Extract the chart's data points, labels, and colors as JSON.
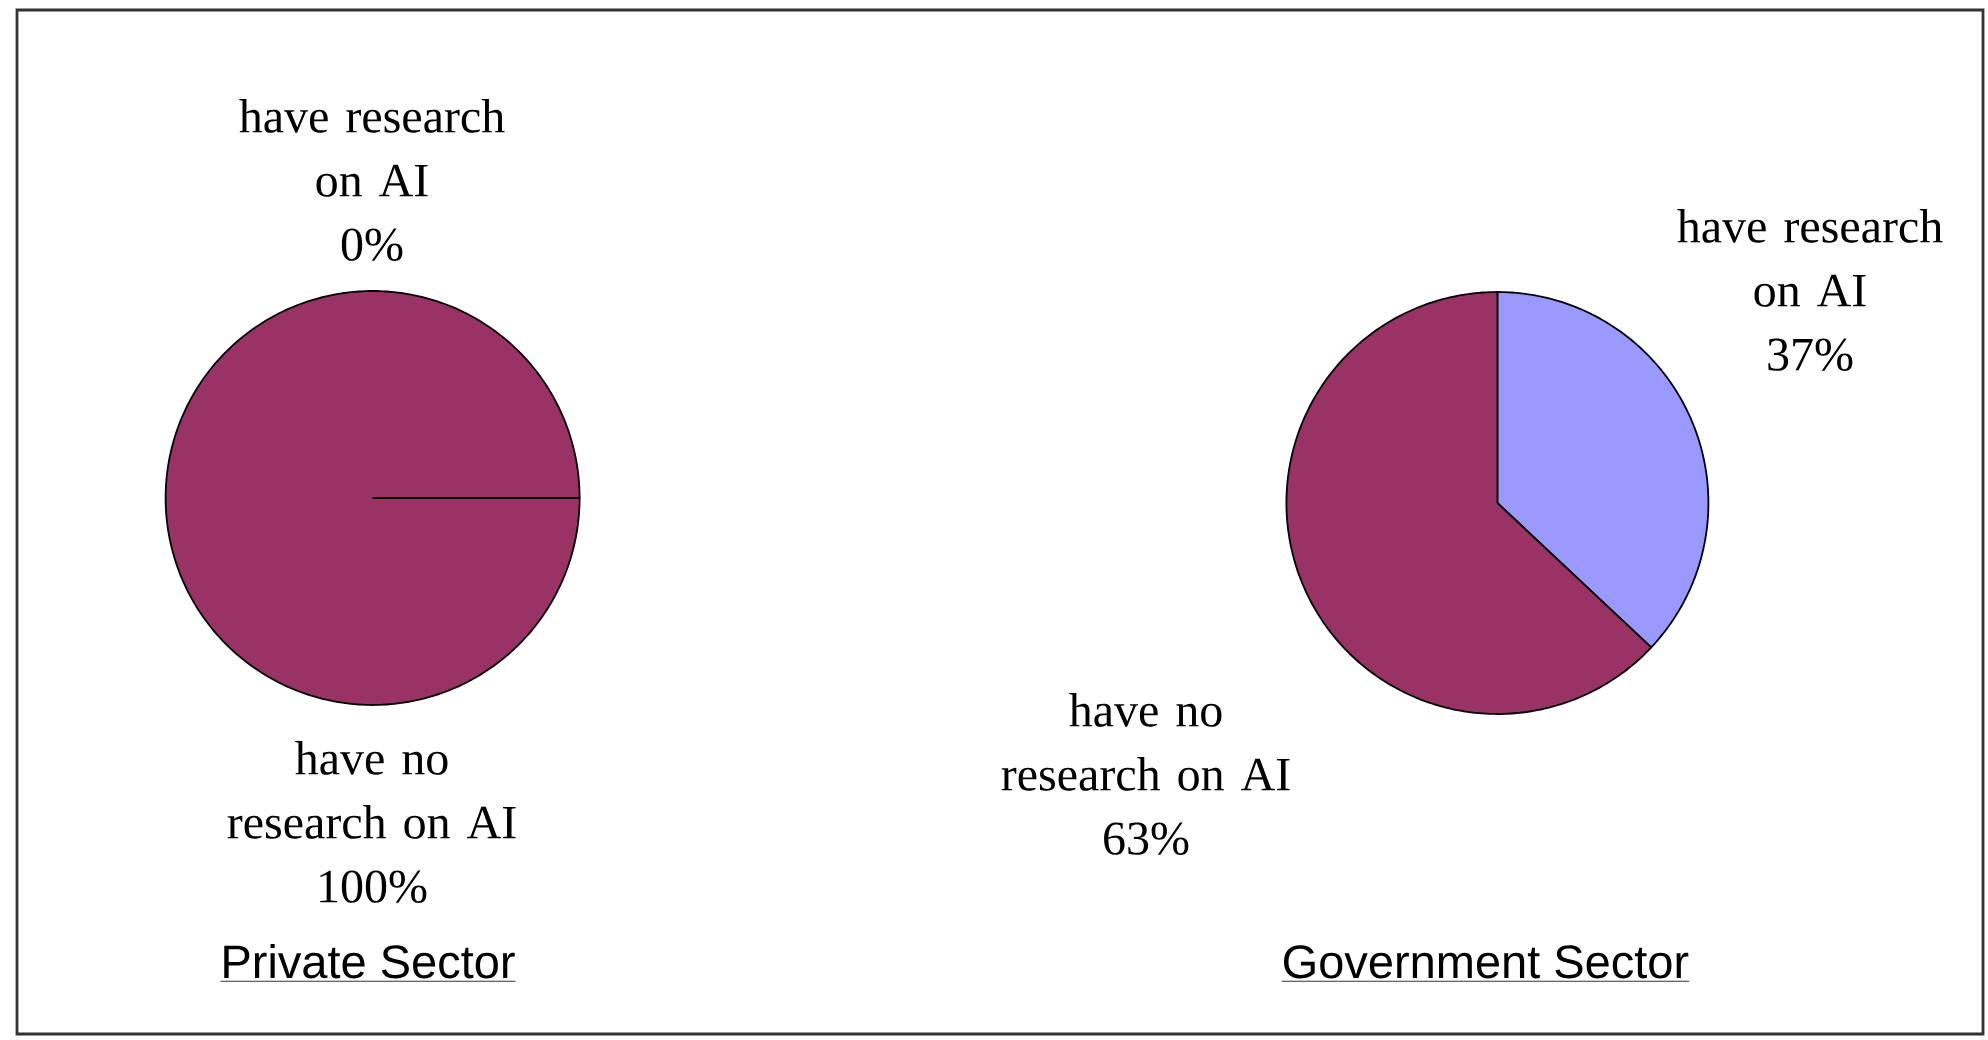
{
  "chart_data": [
    {
      "type": "pie",
      "title": "Private Sector",
      "categories": [
        "have research on AI",
        "have no research on AI"
      ],
      "values": [
        0,
        100
      ],
      "colors": [
        "#9999ff",
        "#993366"
      ],
      "value_labels": [
        "0%",
        "100%"
      ]
    },
    {
      "type": "pie",
      "title": "Government Sector",
      "categories": [
        "have research on AI",
        "have no research on AI"
      ],
      "values": [
        37,
        63
      ],
      "colors": [
        "#9999ff",
        "#993366"
      ],
      "value_labels": [
        "37%",
        "63%"
      ]
    }
  ]
}
